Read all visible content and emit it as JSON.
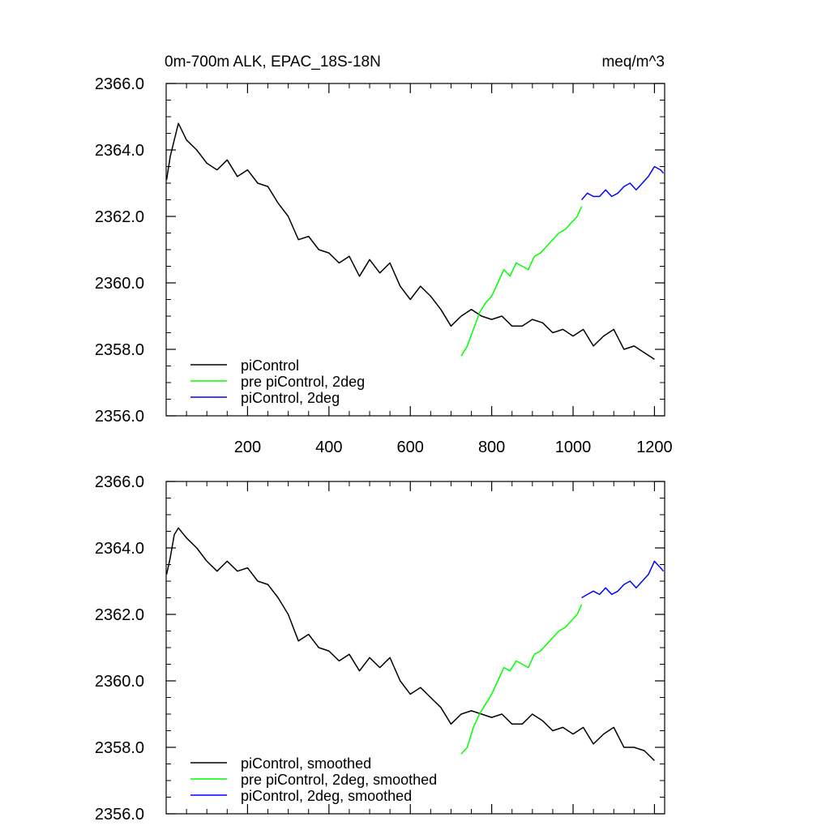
{
  "chart_data": [
    {
      "type": "line",
      "title": "0m-700m ALK, EPAC_18S-18N",
      "units": "meq/m^3",
      "xlim": [
        0,
        1225
      ],
      "ylim": [
        2356,
        2366
      ],
      "xticks": [
        200,
        400,
        600,
        800,
        1000,
        1200
      ],
      "xtick_labels": [
        "200",
        "400",
        "600",
        "800",
        "1000",
        "1200"
      ],
      "yticks": [
        2356,
        2358,
        2360,
        2362,
        2364,
        2366
      ],
      "ytick_labels": [
        "2356.0",
        "2358.0",
        "2360.0",
        "2362.0",
        "2364.0",
        "2366.0"
      ],
      "legend_position": "bottom-left",
      "grid": false,
      "series": [
        {
          "name": "piControl",
          "color": "#000000",
          "x": [
            1,
            10,
            20,
            30,
            50,
            75,
            100,
            125,
            150,
            175,
            200,
            225,
            250,
            275,
            300,
            325,
            350,
            375,
            400,
            425,
            450,
            475,
            500,
            525,
            550,
            575,
            600,
            625,
            650,
            675,
            700,
            725,
            750,
            775,
            800,
            825,
            850,
            875,
            900,
            925,
            950,
            975,
            1000,
            1025,
            1050,
            1075,
            1100,
            1125,
            1150,
            1175,
            1200
          ],
          "y": [
            2363.1,
            2363.8,
            2364.3,
            2364.8,
            2364.3,
            2364.0,
            2363.6,
            2363.4,
            2363.7,
            2363.2,
            2363.4,
            2363.0,
            2362.9,
            2362.4,
            2362.0,
            2361.3,
            2361.4,
            2361.0,
            2360.9,
            2360.6,
            2360.8,
            2360.2,
            2360.7,
            2360.3,
            2360.6,
            2359.9,
            2359.5,
            2359.9,
            2359.6,
            2359.2,
            2358.7,
            2359.0,
            2359.2,
            2359.0,
            2358.9,
            2359.0,
            2358.7,
            2358.7,
            2358.9,
            2358.8,
            2358.5,
            2358.6,
            2358.4,
            2358.6,
            2358.1,
            2358.4,
            2358.6,
            2358.0,
            2358.1,
            2357.9,
            2357.7
          ]
        },
        {
          "name": "pre piControl, 2deg",
          "color": "#00ff00",
          "x": [
            725,
            740,
            755,
            770,
            785,
            800,
            815,
            830,
            845,
            860,
            875,
            890,
            905,
            920,
            935,
            950,
            965,
            980,
            995,
            1010,
            1021
          ],
          "y": [
            2357.8,
            2358.1,
            2358.6,
            2359.1,
            2359.4,
            2359.6,
            2360.0,
            2360.4,
            2360.2,
            2360.6,
            2360.5,
            2360.4,
            2360.8,
            2360.9,
            2361.1,
            2361.3,
            2361.5,
            2361.6,
            2361.8,
            2362.0,
            2362.3
          ]
        },
        {
          "name": "piControl, 2deg",
          "color": "#0000ff",
          "x": [
            1021,
            1035,
            1050,
            1065,
            1080,
            1095,
            1110,
            1125,
            1140,
            1155,
            1170,
            1185,
            1200,
            1215,
            1222
          ],
          "y": [
            2362.5,
            2362.7,
            2362.6,
            2362.6,
            2362.8,
            2362.6,
            2362.7,
            2362.9,
            2363.0,
            2362.8,
            2363.0,
            2363.2,
            2363.5,
            2363.4,
            2363.3
          ]
        }
      ]
    },
    {
      "type": "line",
      "xlim": [
        0,
        1225
      ],
      "ylim": [
        2356,
        2366
      ],
      "xticks": [
        200,
        400,
        600,
        800,
        1000,
        1200
      ],
      "yticks": [
        2356,
        2358,
        2360,
        2362,
        2364,
        2366
      ],
      "ytick_labels": [
        "2356.0",
        "2358.0",
        "2360.0",
        "2362.0",
        "2364.0",
        "2366.0"
      ],
      "legend_position": "bottom-left",
      "grid": false,
      "series": [
        {
          "name": "piControl, smoothed",
          "color": "#000000",
          "x": [
            1,
            10,
            20,
            30,
            50,
            75,
            100,
            125,
            150,
            175,
            200,
            225,
            250,
            275,
            300,
            325,
            350,
            375,
            400,
            425,
            450,
            475,
            500,
            525,
            550,
            575,
            600,
            625,
            650,
            675,
            700,
            725,
            750,
            775,
            800,
            825,
            850,
            875,
            900,
            925,
            950,
            975,
            1000,
            1025,
            1050,
            1075,
            1100,
            1125,
            1150,
            1175,
            1200
          ],
          "y": [
            2363.2,
            2363.7,
            2364.4,
            2364.6,
            2364.3,
            2364.0,
            2363.6,
            2363.3,
            2363.6,
            2363.3,
            2363.4,
            2363.0,
            2362.9,
            2362.5,
            2362.0,
            2361.2,
            2361.4,
            2361.0,
            2360.9,
            2360.6,
            2360.8,
            2360.3,
            2360.7,
            2360.4,
            2360.7,
            2360.0,
            2359.6,
            2359.8,
            2359.5,
            2359.2,
            2358.7,
            2359.0,
            2359.1,
            2359.0,
            2358.9,
            2359.0,
            2358.7,
            2358.7,
            2359.0,
            2358.8,
            2358.5,
            2358.6,
            2358.4,
            2358.6,
            2358.1,
            2358.4,
            2358.6,
            2358.0,
            2358.0,
            2357.9,
            2357.6
          ]
        },
        {
          "name": "pre piControl, 2deg, smoothed",
          "color": "#00ff00",
          "x": [
            725,
            740,
            755,
            770,
            785,
            800,
            815,
            830,
            845,
            860,
            875,
            890,
            905,
            920,
            935,
            950,
            965,
            980,
            995,
            1010,
            1021
          ],
          "y": [
            2357.8,
            2358.0,
            2358.6,
            2359.0,
            2359.3,
            2359.6,
            2360.0,
            2360.4,
            2360.3,
            2360.6,
            2360.5,
            2360.4,
            2360.8,
            2360.9,
            2361.1,
            2361.3,
            2361.5,
            2361.6,
            2361.8,
            2362.0,
            2362.3
          ]
        },
        {
          "name": "piControl, 2deg, smoothed",
          "color": "#0000ff",
          "x": [
            1021,
            1035,
            1050,
            1065,
            1080,
            1095,
            1110,
            1125,
            1140,
            1155,
            1170,
            1185,
            1200,
            1215,
            1222
          ],
          "y": [
            2362.5,
            2362.6,
            2362.7,
            2362.6,
            2362.8,
            2362.6,
            2362.7,
            2362.9,
            2363.0,
            2362.8,
            2363.0,
            2363.2,
            2363.6,
            2363.4,
            2363.3
          ]
        }
      ]
    }
  ]
}
